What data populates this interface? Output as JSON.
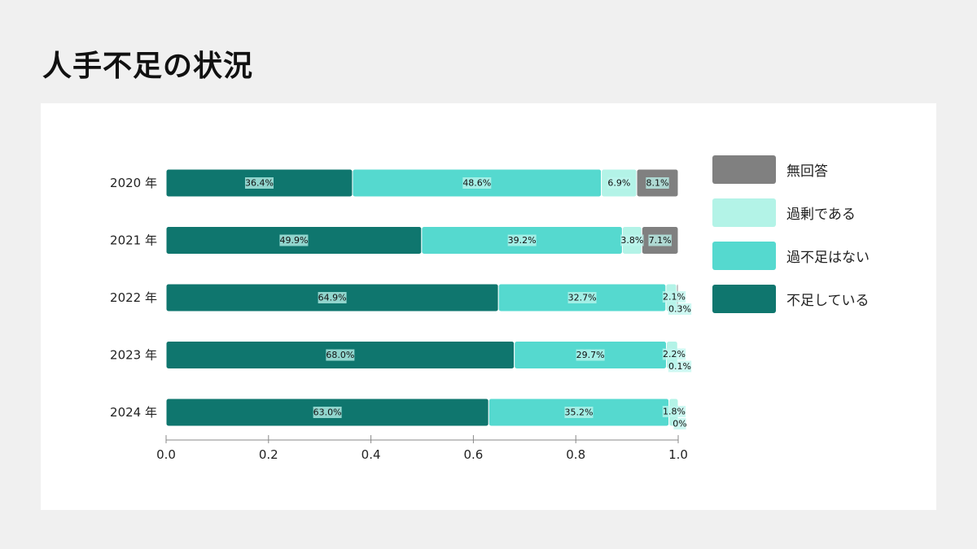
{
  "title": "人手不足の状況",
  "colors": {
    "shortage": "#0f766e",
    "no_shortage": "#55d9cf",
    "excess": "#b3f3e7",
    "no_answer": "#808080"
  },
  "legend": [
    {
      "name": "無回答",
      "color": "#808080"
    },
    {
      "name": "過剰である",
      "color": "#b3f3e7"
    },
    {
      "name": "過不足はない",
      "color": "#55d9cf"
    },
    {
      "name": "不足している",
      "color": "#0f766e"
    }
  ],
  "chart_data": {
    "type": "bar",
    "orientation": "horizontal",
    "stacked": true,
    "categories": [
      "2020 年",
      "2021 年",
      "2022 年",
      "2023 年",
      "2024 年"
    ],
    "series": [
      {
        "name": "不足している",
        "values": [
          0.364,
          0.499,
          0.649,
          0.68,
          0.63
        ],
        "labels": [
          "36.4%",
          "49.9%",
          "64.9%",
          "68.0%",
          "63.0%"
        ]
      },
      {
        "name": "過不足はない",
        "values": [
          0.486,
          0.392,
          0.327,
          0.297,
          0.352
        ],
        "labels": [
          "48.6%",
          "39.2%",
          "32.7%",
          "29.7%",
          "35.2%"
        ]
      },
      {
        "name": "過剰である",
        "values": [
          0.069,
          0.038,
          0.021,
          0.022,
          0.018
        ],
        "labels": [
          "6.9%",
          "3.8%",
          "2.1%",
          "2.2%",
          "1.8%"
        ]
      },
      {
        "name": "無回答",
        "values": [
          0.081,
          0.071,
          0.003,
          0.001,
          0.0
        ],
        "labels": [
          "8.1%",
          "7.1%",
          "0.3%",
          "0.1%",
          "0%"
        ]
      }
    ],
    "xlim": [
      0,
      1.0
    ],
    "xticks": [
      "0.0",
      "0.2",
      "0.4",
      "0.6",
      "0.8",
      "1.0"
    ],
    "legend_position": "right",
    "grid": false
  }
}
